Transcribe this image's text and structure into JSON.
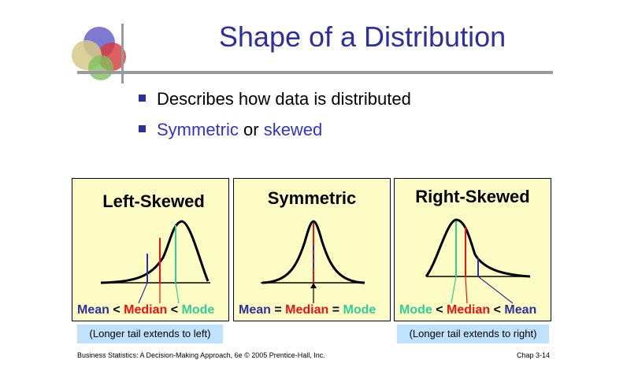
{
  "slide": {
    "title": "Shape of a Distribution",
    "bullets": [
      {
        "text": "Describes how data is distributed"
      },
      {
        "part1": "Symmetric",
        "part2": " or ",
        "part3": "skewed"
      }
    ]
  },
  "panels": [
    {
      "title": "Left-Skewed",
      "mean": "Mean",
      "op1": " < ",
      "median": "Median",
      "op2": " < ",
      "mode": "Mode"
    },
    {
      "title": "Symmetric",
      "mean": "Mean",
      "op1": " = ",
      "median": "Median",
      "op2": " = ",
      "mode": "Mode"
    },
    {
      "title": "Right-Skewed",
      "mode": "Mode",
      "op1": " < ",
      "median": "Median",
      "op2": " < ",
      "mean": "Mean"
    }
  ],
  "notes": {
    "left": "(Longer tail extends to left)",
    "right": "(Longer tail extends to right)"
  },
  "footer": {
    "source": "Business Statistics: A Decision-Making Approach, 6e © 2005 Prentice-Hall, Inc.",
    "page": "Chap 3-14"
  },
  "colors": {
    "title": "#2e2e9e",
    "mean": "#2e2e9e",
    "median": "#ee1111",
    "mode": "#33cc99",
    "panel_bg": "#fefcc5",
    "note_bg": "#bfe3ff"
  }
}
